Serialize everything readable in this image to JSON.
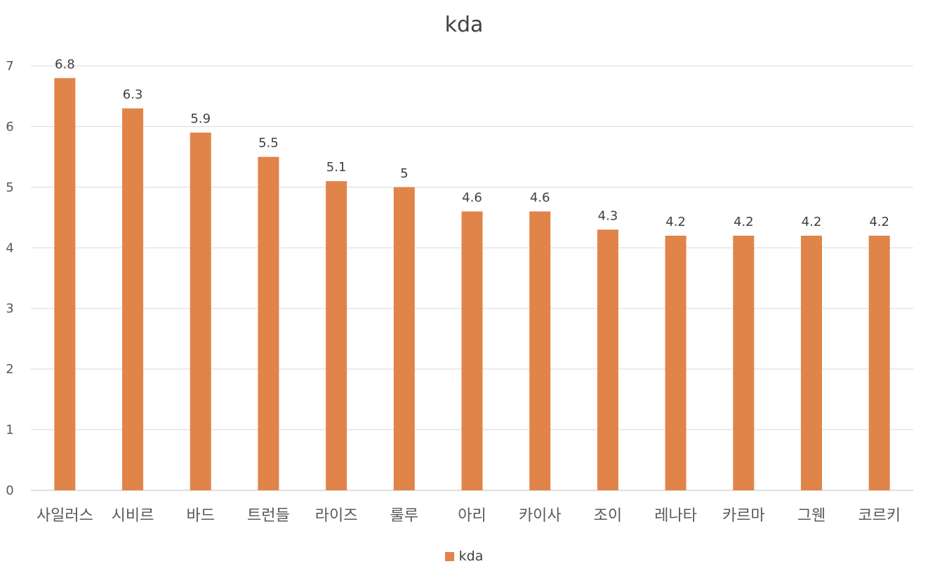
{
  "chart_data": {
    "type": "bar",
    "title": "kda",
    "xlabel": "",
    "ylabel": "",
    "ylim": [
      0,
      7
    ],
    "yticks": [
      "0",
      "1",
      "2",
      "3",
      "4",
      "5",
      "6",
      "7"
    ],
    "grid": true,
    "legend_position": "bottom",
    "categories": [
      "사일러스",
      "시비르",
      "바드",
      "트런들",
      "라이즈",
      "룰루",
      "아리",
      "카이사",
      "조이",
      "레나타",
      "카르마",
      "그웬",
      "코르키"
    ],
    "series": [
      {
        "name": "kda",
        "color": "#E0844A",
        "values": [
          6.8,
          6.3,
          5.9,
          5.5,
          5.1,
          5,
          4.6,
          4.6,
          4.3,
          4.2,
          4.2,
          4.2,
          4.2
        ],
        "labels": [
          "6.8",
          "6.3",
          "5.9",
          "5.5",
          "5.1",
          "5",
          "4.6",
          "4.6",
          "4.3",
          "4.2",
          "4.2",
          "4.2",
          "4.2"
        ]
      }
    ]
  }
}
